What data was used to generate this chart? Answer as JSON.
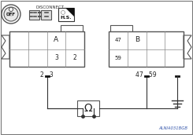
{
  "bg_color": "#ffffff",
  "border_color": "#666666",
  "disconnect_label": "DISCONNECT",
  "hs_label": "H.S.",
  "off_label": "OFF",
  "connector_a_label": "A",
  "connector_b_label": "B",
  "connector_a_pins": [
    "3",
    "2"
  ],
  "connector_b_pins": [
    "47",
    "59"
  ],
  "probe_label_a": "2 , 3",
  "probe_label_b": "47 , 59",
  "watermark": "ALNIA031BGB",
  "fig_bg": "#ffffff"
}
